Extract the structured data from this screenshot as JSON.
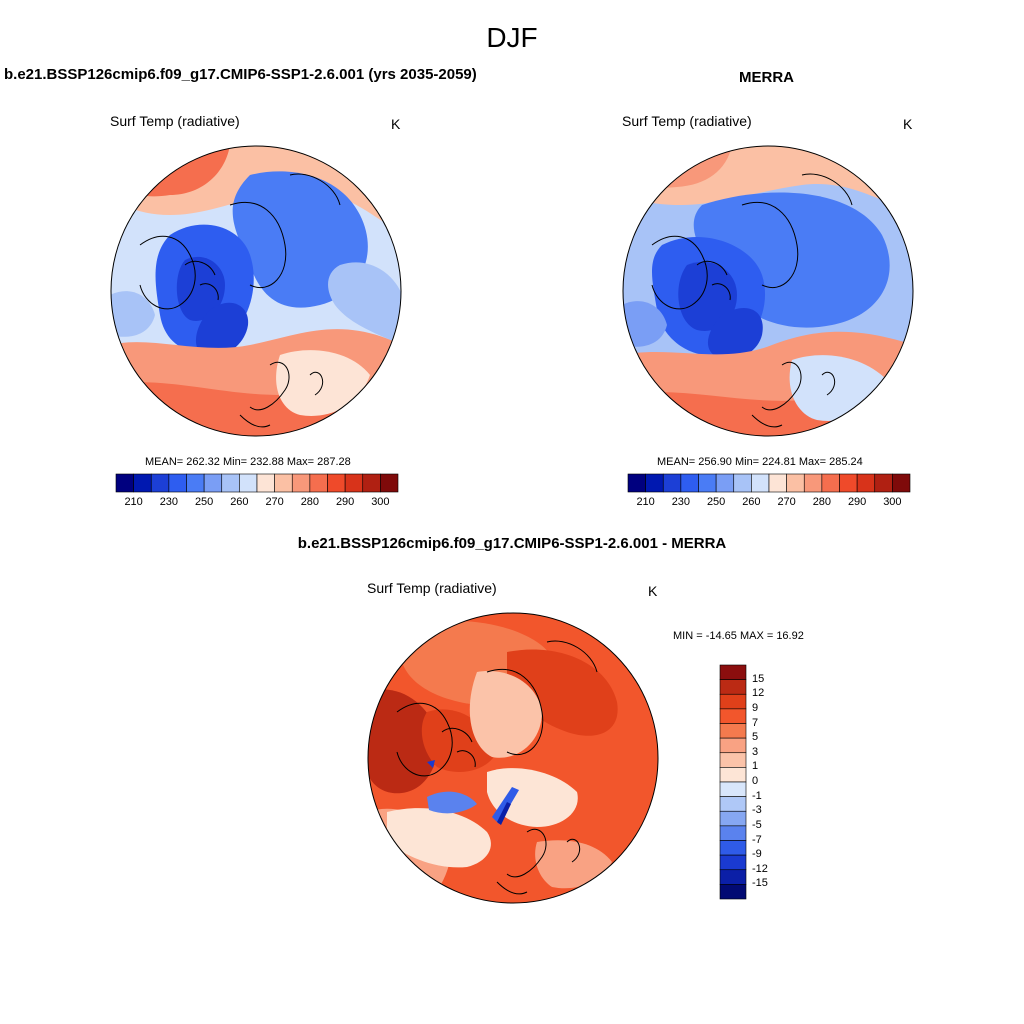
{
  "figure": {
    "season": "DJF"
  },
  "panel_model": {
    "title": "b.e21.BSSP126cmip6.f09_g17.CMIP6-SSP1-2.6.001 (yrs 2035-2059)",
    "field": "Surf Temp (radiative)",
    "units": "K",
    "stats": "MEAN= 262.32  Min= 232.88  Max= 287.28",
    "stats_values": {
      "mean": 262.32,
      "min": 232.88,
      "max": 287.28
    }
  },
  "panel_obs": {
    "title": "MERRA",
    "field": "Surf Temp (radiative)",
    "units": "K",
    "stats": "MEAN= 256.90  Min= 224.81  Max= 285.24",
    "stats_values": {
      "mean": 256.9,
      "min": 224.81,
      "max": 285.24
    }
  },
  "panel_diff": {
    "title": "b.e21.BSSP126cmip6.f09_g17.CMIP6-SSP1-2.6.001 - MERRA",
    "field": "Surf Temp (radiative)",
    "units": "K",
    "stats": "MIN = -14.65 MAX =  16.92",
    "stats_values": {
      "min": -14.65,
      "max": 16.92
    }
  },
  "temp_colorbar": {
    "tick_labels": [
      "210",
      "230",
      "250",
      "260",
      "270",
      "280",
      "290",
      "300"
    ],
    "colors": [
      "#00007f",
      "#0018b0",
      "#1c3fd6",
      "#2e5df0",
      "#4a7cf5",
      "#7a9ef5",
      "#a8c3f7",
      "#d2e2fb",
      "#fde4d6",
      "#fbc0a4",
      "#f8987a",
      "#f56e4e",
      "#ef4a2a",
      "#d8331a",
      "#b02012",
      "#7f0a0a"
    ]
  },
  "diff_colorbar": {
    "tick_labels": [
      "15",
      "12",
      "9",
      "7",
      "5",
      "3",
      "1",
      "0",
      "-1",
      "-3",
      "-5",
      "-7",
      "-9",
      "-12",
      "-15"
    ],
    "colors": [
      "#8b0e0e",
      "#bb2a14",
      "#e0401a",
      "#f2562c",
      "#f47a4e",
      "#f9a283",
      "#fbc3a9",
      "#fde5d6",
      "#d8e6fb",
      "#afc8f7",
      "#86a7f2",
      "#5a82ee",
      "#2f5be8",
      "#1a3ad1",
      "#0b1fa7",
      "#020a73"
    ]
  }
}
